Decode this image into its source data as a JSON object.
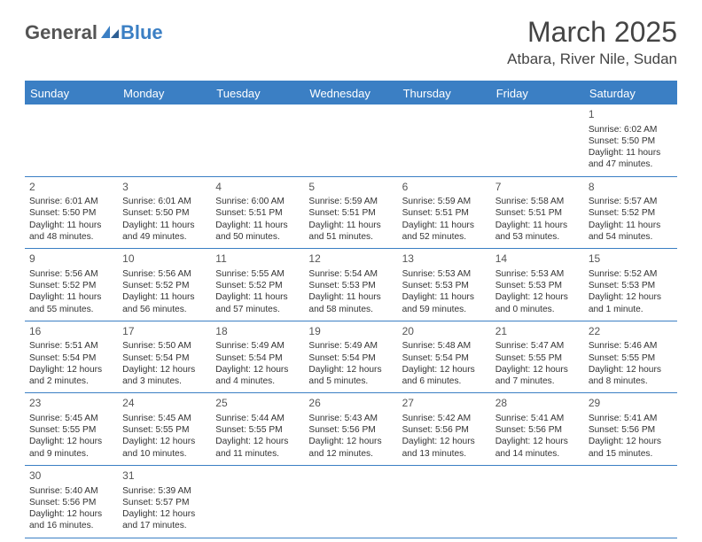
{
  "logo": {
    "part1": "General",
    "part2": "Blue"
  },
  "title": "March 2025",
  "location": "Atbara, River Nile, Sudan",
  "colors": {
    "accent": "#3b7fc4",
    "text": "#333333",
    "title_text": "#444444",
    "background": "#ffffff"
  },
  "typography": {
    "title_fontsize": 32,
    "location_fontsize": 17,
    "dayhead_fontsize": 13,
    "cell_fontsize": 10.2,
    "daynum_fontsize": 12
  },
  "dayNames": [
    "Sunday",
    "Monday",
    "Tuesday",
    "Wednesday",
    "Thursday",
    "Friday",
    "Saturday"
  ],
  "weeks": [
    [
      null,
      null,
      null,
      null,
      null,
      null,
      {
        "n": "1",
        "sr": "6:02 AM",
        "ss": "5:50 PM",
        "dh": "11",
        "dm": "47"
      }
    ],
    [
      {
        "n": "2",
        "sr": "6:01 AM",
        "ss": "5:50 PM",
        "dh": "11",
        "dm": "48"
      },
      {
        "n": "3",
        "sr": "6:01 AM",
        "ss": "5:50 PM",
        "dh": "11",
        "dm": "49"
      },
      {
        "n": "4",
        "sr": "6:00 AM",
        "ss": "5:51 PM",
        "dh": "11",
        "dm": "50"
      },
      {
        "n": "5",
        "sr": "5:59 AM",
        "ss": "5:51 PM",
        "dh": "11",
        "dm": "51"
      },
      {
        "n": "6",
        "sr": "5:59 AM",
        "ss": "5:51 PM",
        "dh": "11",
        "dm": "52"
      },
      {
        "n": "7",
        "sr": "5:58 AM",
        "ss": "5:51 PM",
        "dh": "11",
        "dm": "53"
      },
      {
        "n": "8",
        "sr": "5:57 AM",
        "ss": "5:52 PM",
        "dh": "11",
        "dm": "54"
      }
    ],
    [
      {
        "n": "9",
        "sr": "5:56 AM",
        "ss": "5:52 PM",
        "dh": "11",
        "dm": "55"
      },
      {
        "n": "10",
        "sr": "5:56 AM",
        "ss": "5:52 PM",
        "dh": "11",
        "dm": "56"
      },
      {
        "n": "11",
        "sr": "5:55 AM",
        "ss": "5:52 PM",
        "dh": "11",
        "dm": "57"
      },
      {
        "n": "12",
        "sr": "5:54 AM",
        "ss": "5:53 PM",
        "dh": "11",
        "dm": "58"
      },
      {
        "n": "13",
        "sr": "5:53 AM",
        "ss": "5:53 PM",
        "dh": "11",
        "dm": "59"
      },
      {
        "n": "14",
        "sr": "5:53 AM",
        "ss": "5:53 PM",
        "dh": "12",
        "dm": "0"
      },
      {
        "n": "15",
        "sr": "5:52 AM",
        "ss": "5:53 PM",
        "dh": "12",
        "dm": "1"
      }
    ],
    [
      {
        "n": "16",
        "sr": "5:51 AM",
        "ss": "5:54 PM",
        "dh": "12",
        "dm": "2"
      },
      {
        "n": "17",
        "sr": "5:50 AM",
        "ss": "5:54 PM",
        "dh": "12",
        "dm": "3"
      },
      {
        "n": "18",
        "sr": "5:49 AM",
        "ss": "5:54 PM",
        "dh": "12",
        "dm": "4"
      },
      {
        "n": "19",
        "sr": "5:49 AM",
        "ss": "5:54 PM",
        "dh": "12",
        "dm": "5"
      },
      {
        "n": "20",
        "sr": "5:48 AM",
        "ss": "5:54 PM",
        "dh": "12",
        "dm": "6"
      },
      {
        "n": "21",
        "sr": "5:47 AM",
        "ss": "5:55 PM",
        "dh": "12",
        "dm": "7"
      },
      {
        "n": "22",
        "sr": "5:46 AM",
        "ss": "5:55 PM",
        "dh": "12",
        "dm": "8"
      }
    ],
    [
      {
        "n": "23",
        "sr": "5:45 AM",
        "ss": "5:55 PM",
        "dh": "12",
        "dm": "9"
      },
      {
        "n": "24",
        "sr": "5:45 AM",
        "ss": "5:55 PM",
        "dh": "12",
        "dm": "10"
      },
      {
        "n": "25",
        "sr": "5:44 AM",
        "ss": "5:55 PM",
        "dh": "12",
        "dm": "11"
      },
      {
        "n": "26",
        "sr": "5:43 AM",
        "ss": "5:56 PM",
        "dh": "12",
        "dm": "12"
      },
      {
        "n": "27",
        "sr": "5:42 AM",
        "ss": "5:56 PM",
        "dh": "12",
        "dm": "13"
      },
      {
        "n": "28",
        "sr": "5:41 AM",
        "ss": "5:56 PM",
        "dh": "12",
        "dm": "14"
      },
      {
        "n": "29",
        "sr": "5:41 AM",
        "ss": "5:56 PM",
        "dh": "12",
        "dm": "15"
      }
    ],
    [
      {
        "n": "30",
        "sr": "5:40 AM",
        "ss": "5:56 PM",
        "dh": "12",
        "dm": "16"
      },
      {
        "n": "31",
        "sr": "5:39 AM",
        "ss": "5:57 PM",
        "dh": "12",
        "dm": "17"
      },
      null,
      null,
      null,
      null,
      null
    ]
  ],
  "labels": {
    "sunrise": "Sunrise:",
    "sunset": "Sunset:",
    "daylight_prefix": "Daylight:",
    "hours_word": "hours",
    "and_word": "and",
    "minutes_word": "minutes.",
    "minute_word": "minute."
  }
}
